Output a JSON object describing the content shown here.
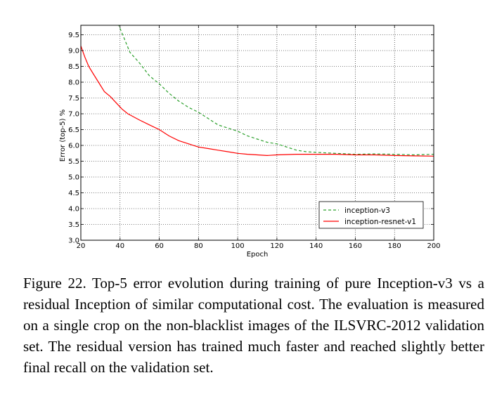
{
  "chart_data": {
    "type": "line",
    "xlabel": "Epoch",
    "ylabel": "Error (top-5) %",
    "xlim": [
      20,
      200
    ],
    "ylim": [
      3.0,
      9.8
    ],
    "xticks": [
      20,
      40,
      60,
      80,
      100,
      120,
      140,
      160,
      180,
      200
    ],
    "yticks": [
      3.0,
      3.5,
      4.0,
      4.5,
      5.0,
      5.5,
      6.0,
      6.5,
      7.0,
      7.5,
      8.0,
      8.5,
      9.0,
      9.5
    ],
    "xtick_labels": [
      "20",
      "40",
      "60",
      "80",
      "100",
      "120",
      "140",
      "160",
      "180",
      "200"
    ],
    "ytick_labels": [
      "3.0",
      "3.5",
      "4.0",
      "4.5",
      "5.0",
      "5.5",
      "6.0",
      "6.5",
      "7.0",
      "7.5",
      "8.0",
      "8.5",
      "9.0",
      "9.5"
    ],
    "grid": true,
    "legend_position": "lower-right",
    "series": [
      {
        "name": "inception-v3",
        "color": "#2ca02c",
        "style": "dashed",
        "x": [
          39,
          42,
          45,
          50,
          55,
          60,
          65,
          70,
          75,
          80,
          85,
          90,
          95,
          100,
          105,
          110,
          115,
          120,
          125,
          130,
          135,
          140,
          150,
          160,
          170,
          180,
          190,
          200
        ],
        "y": [
          9.85,
          9.4,
          8.95,
          8.6,
          8.2,
          7.95,
          7.65,
          7.4,
          7.2,
          7.05,
          6.85,
          6.65,
          6.55,
          6.45,
          6.3,
          6.2,
          6.1,
          6.05,
          5.95,
          5.85,
          5.8,
          5.78,
          5.75,
          5.72,
          5.73,
          5.72,
          5.7,
          5.72
        ]
      },
      {
        "name": "inception-resnet-v1",
        "color": "#ff0000",
        "style": "solid",
        "x": [
          20,
          22,
          24,
          26,
          28,
          30,
          32,
          35,
          38,
          41,
          44,
          47,
          50,
          55,
          60,
          65,
          70,
          75,
          80,
          85,
          90,
          95,
          100,
          105,
          110,
          115,
          120,
          130,
          140,
          150,
          160,
          170,
          180,
          190,
          200
        ],
        "y": [
          9.15,
          8.8,
          8.5,
          8.3,
          8.1,
          7.9,
          7.7,
          7.55,
          7.35,
          7.15,
          7.0,
          6.9,
          6.8,
          6.65,
          6.5,
          6.3,
          6.15,
          6.05,
          5.95,
          5.9,
          5.85,
          5.8,
          5.75,
          5.72,
          5.7,
          5.68,
          5.7,
          5.72,
          5.72,
          5.72,
          5.7,
          5.7,
          5.68,
          5.67,
          5.66
        ]
      }
    ]
  },
  "caption": "Figure 22. Top-5 error evolution during training of pure Inception-v3 vs a residual Inception of similar computational cost. The evaluation is measured on a single crop on the non-blacklist images of the ILSVRC-2012 validation set. The residual version has trained much faster and reached slightly better final recall on the validation set."
}
